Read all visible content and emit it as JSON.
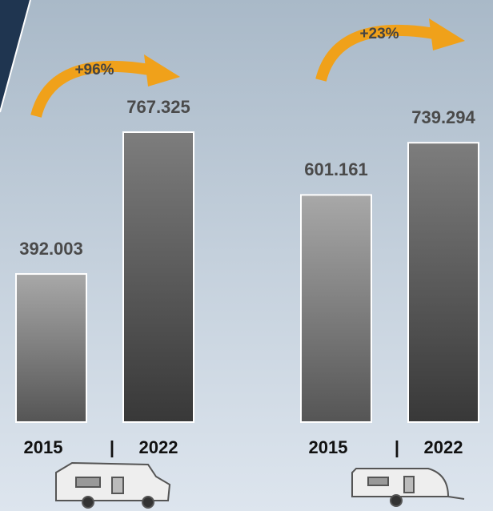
{
  "chart_data": [
    {
      "type": "bar",
      "categories": [
        "2015",
        "2022"
      ],
      "values": [
        392003,
        767325
      ],
      "value_labels": [
        "392.003",
        "767.325"
      ],
      "annotation": "+96%",
      "separator": "|"
    },
    {
      "type": "bar",
      "categories": [
        "2015",
        "2022"
      ],
      "values": [
        601161,
        739294
      ],
      "value_labels": [
        "601.161",
        "739.294"
      ],
      "annotation": "+23%",
      "separator": "|"
    }
  ]
}
